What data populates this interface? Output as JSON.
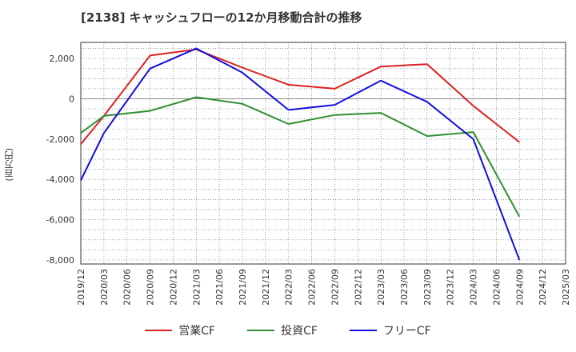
{
  "chart_data": {
    "type": "line",
    "title": "[2138]  キャッシュフローの12か月移動合計の推移",
    "ylabel": "(百万円)",
    "xlabel": "",
    "ylim": [
      -8200,
      2800
    ],
    "yticks": [
      2000,
      0,
      -2000,
      -4000,
      -6000,
      -8000
    ],
    "ytick_labels": [
      "2,000",
      "0",
      "-2,000",
      "-4,000",
      "-6,000",
      "-8,000"
    ],
    "categories": [
      "2019/12",
      "2020/03",
      "2020/06",
      "2020/09",
      "2020/12",
      "2021/03",
      "2021/06",
      "2021/09",
      "2021/12",
      "2022/03",
      "2022/06",
      "2022/09",
      "2022/12",
      "2023/03",
      "2023/06",
      "2023/09",
      "2023/12",
      "2024/03",
      "2024/06",
      "2024/09",
      "2024/12",
      "2025/03"
    ],
    "series": [
      {
        "name": "営業CF",
        "color": "#dd2222",
        "values": [
          -2250,
          -850,
          null,
          2150,
          null,
          2450,
          null,
          1550,
          null,
          700,
          null,
          500,
          null,
          1600,
          null,
          1720,
          null,
          -350,
          null,
          -2150,
          null,
          null
        ]
      },
      {
        "name": "投資CF",
        "color": "#2f8f2f",
        "values": [
          -1700,
          -850,
          null,
          -600,
          null,
          80,
          null,
          -250,
          null,
          -1250,
          null,
          -800,
          null,
          -700,
          null,
          -1850,
          null,
          -1650,
          null,
          -5850,
          null,
          null
        ]
      },
      {
        "name": "フリーCF",
        "color": "#1111dd",
        "values": [
          -4050,
          -1700,
          null,
          1500,
          null,
          2500,
          null,
          1300,
          null,
          -550,
          null,
          -300,
          null,
          900,
          null,
          -150,
          null,
          -2000,
          null,
          -8000,
          null,
          null
        ]
      }
    ],
    "grid": true,
    "legend_position": "bottom"
  }
}
